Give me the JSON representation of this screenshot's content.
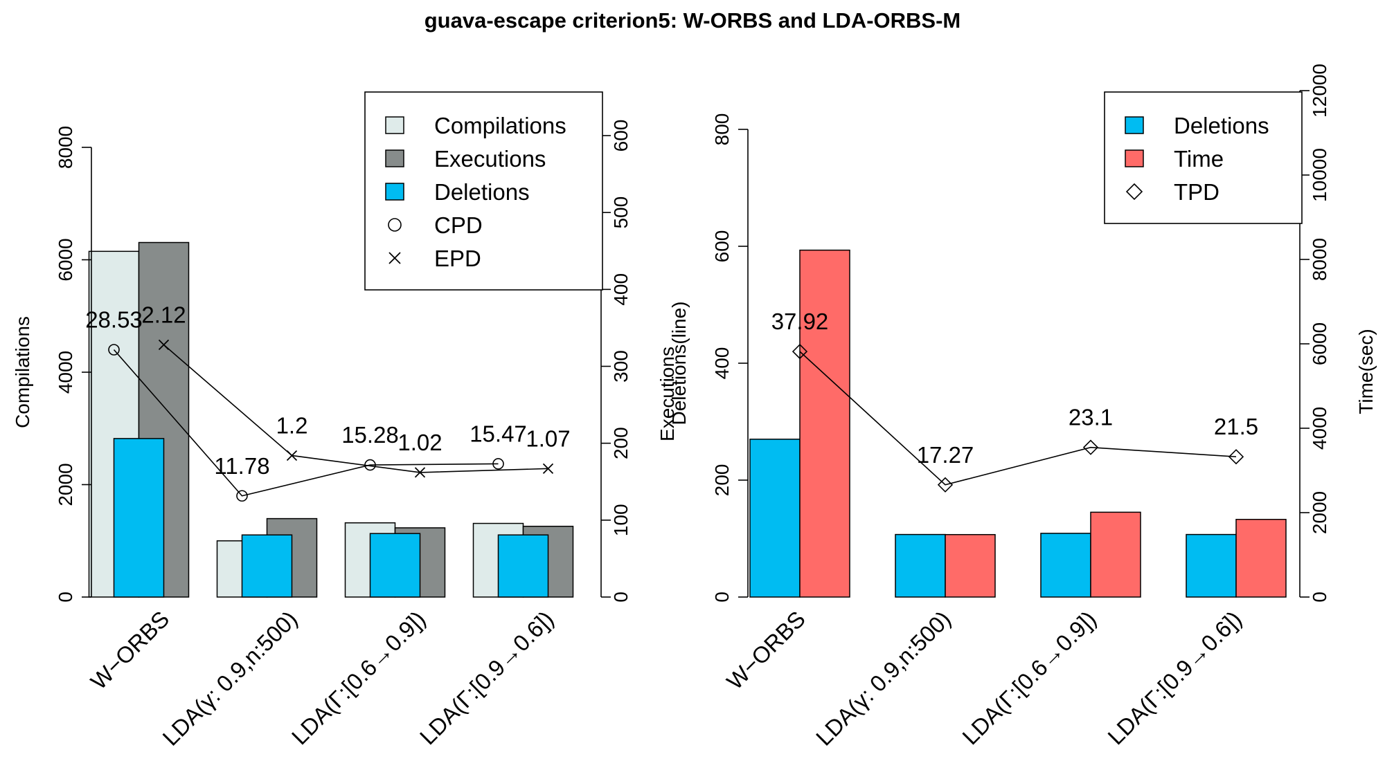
{
  "title": "guava-escape criterion5: W-ORBS and LDA-ORBS-M",
  "categories": [
    "W−ORBS",
    "LDA(γ: 0.9,n:500)",
    "LDA(Γ:[0.6→0.9])",
    "LDA(Γ:[0.9→0.6])"
  ],
  "colors": {
    "compilations": "#dfebea",
    "executions": "#878c8b",
    "deletions": "#00bcf2",
    "time": "#ff6b68"
  },
  "chart_data": [
    {
      "type": "bar",
      "categories": [
        "W−ORBS",
        "LDA(γ: 0.9,n:500)",
        "LDA(Γ:[0.6→0.9])",
        "LDA(Γ:[0.9→0.6])"
      ],
      "ylabel": "Compilations",
      "y2label": "Executions",
      "ylim": [
        0,
        8000
      ],
      "yticks": [
        "0",
        "2000",
        "4000",
        "6000",
        "8000"
      ],
      "y2lim": [
        0,
        600
      ],
      "y2ticks": [
        "0",
        "100",
        "200",
        "300",
        "400",
        "500",
        "600"
      ],
      "series": [
        {
          "name": "Compilations",
          "axis": "left",
          "values": [
            6150,
            1000,
            1320,
            1310
          ]
        },
        {
          "name": "Executions",
          "axis": "right",
          "values": [
            461,
            102,
            90,
            92
          ]
        },
        {
          "name": "Deletions",
          "axis": "left",
          "values": [
            2820,
            1105,
            1130,
            1105
          ]
        }
      ],
      "lines": [
        {
          "name": "CPD",
          "marker": "circle",
          "axis": "left",
          "values": [
            4400,
            1800,
            2350,
            2370
          ],
          "labels": [
            "28.53",
            "11.78",
            "15.28",
            "15.47"
          ]
        },
        {
          "name": "EPD",
          "marker": "cross",
          "axis": "right",
          "values": [
            328,
            184,
            162,
            167
          ],
          "labels": [
            "2.12",
            "1.2",
            "1.02",
            "1.07"
          ]
        }
      ],
      "legend": {
        "position": "top-right",
        "items": [
          {
            "label": "Compilations",
            "type": "box",
            "color": "#dfebea"
          },
          {
            "label": "Executions",
            "type": "box",
            "color": "#878c8b"
          },
          {
            "label": "Deletions",
            "type": "box",
            "color": "#00bcf2"
          },
          {
            "label": "CPD",
            "type": "circle"
          },
          {
            "label": "EPD",
            "type": "cross"
          }
        ]
      },
      "grid": false
    },
    {
      "type": "bar",
      "categories": [
        "W−ORBS",
        "LDA(γ: 0.9,n:500)",
        "LDA(Γ:[0.6→0.9])",
        "LDA(Γ:[0.9→0.6])"
      ],
      "ylabel": "Deletions(line)",
      "y2label": "Time(sec)",
      "ylim": [
        0,
        800
      ],
      "yticks": [
        "0",
        "200",
        "400",
        "600",
        "800"
      ],
      "y2lim": [
        0,
        12000
      ],
      "y2ticks": [
        "0",
        "2000",
        "4000",
        "6000",
        "8000",
        "10000",
        "12000"
      ],
      "series": [
        {
          "name": "Deletions",
          "axis": "left",
          "values": [
            270,
            107,
            109,
            107
          ]
        },
        {
          "name": "Time",
          "axis": "right",
          "values": [
            8220,
            1480,
            2010,
            1840
          ]
        }
      ],
      "lines": [
        {
          "name": "TPD",
          "marker": "diamond",
          "axis": "left",
          "values": [
            420,
            192,
            256,
            240
          ],
          "labels": [
            "37.92",
            "17.27",
            "23.1",
            "21.5"
          ]
        }
      ],
      "legend": {
        "position": "top-right",
        "items": [
          {
            "label": "Deletions",
            "type": "box",
            "color": "#00bcf2"
          },
          {
            "label": "Time",
            "type": "box",
            "color": "#ff6b68"
          },
          {
            "label": "TPD",
            "type": "diamond"
          }
        ]
      },
      "grid": false
    }
  ]
}
